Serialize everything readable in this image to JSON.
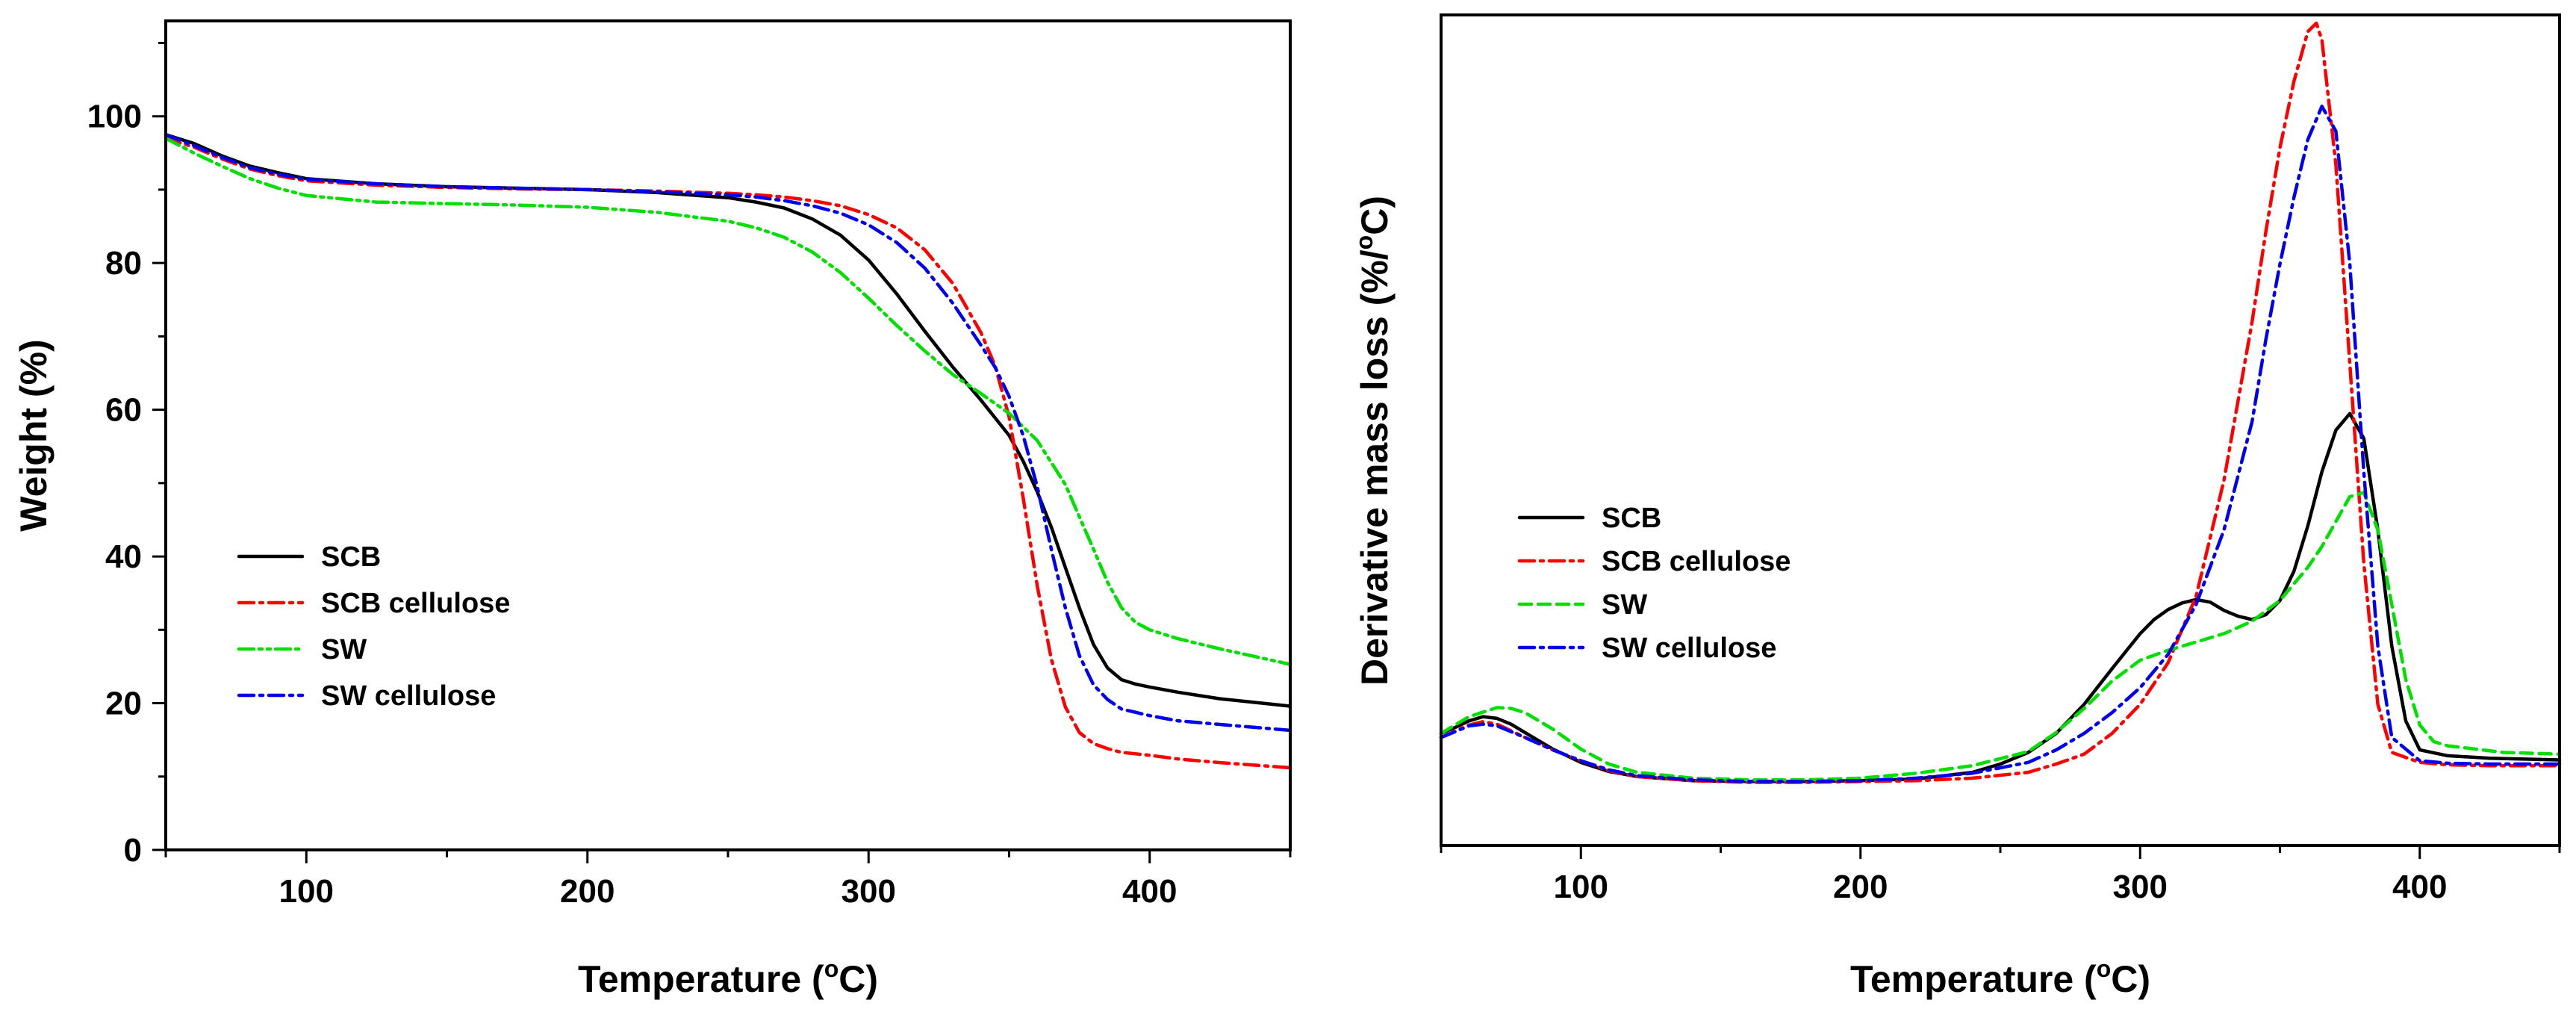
{
  "chart_data": [
    {
      "type": "line",
      "xlabel": "Temperature (",
      "xlabel_sup": "o",
      "xlabel_unit": "C)",
      "ylabel": "Weight (%)",
      "xlim": [
        50,
        450
      ],
      "ylim": [
        0,
        113
      ],
      "xticks": [
        "100",
        "200",
        "300",
        "400"
      ],
      "yticks": [
        "0",
        "20",
        "40",
        "60",
        "80",
        "100"
      ],
      "legend": [
        "SCB",
        "SCB cellulose",
        "SW",
        "SW cellulose"
      ],
      "series": [
        {
          "name": "SCB",
          "color": "#000000",
          "dash": "solid",
          "x": [
            50,
            60,
            70,
            80,
            90,
            100,
            125,
            150,
            175,
            200,
            225,
            250,
            260,
            270,
            280,
            290,
            300,
            310,
            320,
            330,
            340,
            350,
            355,
            360,
            365,
            370,
            375,
            380,
            385,
            390,
            395,
            400,
            410,
            425,
            450
          ],
          "y": [
            97.5,
            96.3,
            94.6,
            93.2,
            92.3,
            91.5,
            90.8,
            90.4,
            90.2,
            90.0,
            89.6,
            88.9,
            88.3,
            87.5,
            86.0,
            83.8,
            80.4,
            75.8,
            70.7,
            65.8,
            61.3,
            56.5,
            53.0,
            48.8,
            44.0,
            38.5,
            33.0,
            28.0,
            24.8,
            23.2,
            22.6,
            22.2,
            21.5,
            20.6,
            19.6
          ]
        },
        {
          "name": "SCB cellulose",
          "color": "#ff0000",
          "dash": "dashdot",
          "x": [
            50,
            60,
            70,
            80,
            90,
            100,
            125,
            150,
            175,
            200,
            225,
            250,
            260,
            270,
            280,
            290,
            300,
            310,
            320,
            330,
            340,
            345,
            350,
            355,
            360,
            365,
            370,
            375,
            380,
            385,
            390,
            400,
            410,
            425,
            450
          ],
          "y": [
            97.0,
            95.8,
            94.2,
            92.8,
            91.9,
            91.2,
            90.6,
            90.3,
            90.1,
            90.0,
            89.8,
            89.5,
            89.3,
            89.0,
            88.5,
            87.8,
            86.6,
            84.8,
            81.8,
            77.2,
            70.5,
            66.0,
            59.0,
            48.0,
            36.0,
            26.0,
            19.5,
            16.0,
            14.5,
            13.8,
            13.3,
            12.9,
            12.4,
            11.9,
            11.2
          ]
        },
        {
          "name": "SW",
          "color": "#00e000",
          "dash": "dashdotdot",
          "x": [
            50,
            60,
            70,
            80,
            90,
            100,
            125,
            150,
            175,
            200,
            225,
            250,
            260,
            270,
            280,
            290,
            300,
            310,
            320,
            330,
            340,
            350,
            360,
            370,
            380,
            385,
            390,
            395,
            400,
            410,
            425,
            450
          ],
          "y": [
            97.0,
            95.0,
            93.2,
            91.5,
            90.2,
            89.2,
            88.3,
            88.1,
            87.9,
            87.6,
            86.9,
            85.7,
            84.8,
            83.5,
            81.5,
            78.7,
            75.2,
            71.5,
            68.0,
            64.8,
            62.2,
            59.5,
            55.8,
            49.8,
            41.0,
            36.5,
            33.0,
            31.0,
            30.0,
            28.8,
            27.4,
            25.3
          ]
        },
        {
          "name": "SW cellulose",
          "color": "#0000ee",
          "dash": "dashdot",
          "x": [
            50,
            60,
            70,
            80,
            90,
            100,
            125,
            150,
            175,
            200,
            225,
            250,
            260,
            270,
            280,
            290,
            300,
            310,
            320,
            330,
            340,
            345,
            350,
            355,
            360,
            365,
            370,
            375,
            380,
            385,
            390,
            400,
            410,
            425,
            450
          ],
          "y": [
            97.5,
            96.0,
            94.4,
            93.0,
            92.1,
            91.4,
            90.8,
            90.4,
            90.2,
            90.0,
            89.7,
            89.3,
            89.0,
            88.5,
            87.8,
            86.8,
            85.2,
            82.8,
            79.3,
            74.5,
            68.8,
            65.8,
            61.8,
            56.5,
            49.5,
            41.0,
            33.0,
            26.5,
            22.5,
            20.5,
            19.2,
            18.3,
            17.6,
            17.1,
            16.3
          ]
        }
      ]
    },
    {
      "type": "line",
      "xlabel": "Temperature (",
      "xlabel_sup": "o",
      "xlabel_unit": "C)",
      "ylabel": "Derivative mass loss (%/",
      "ylabel_sup": "o",
      "ylabel_unit": "C)",
      "xlim": [
        50,
        450
      ],
      "ylim": [
        0,
        100
      ],
      "xticks": [
        "100",
        "200",
        "300",
        "400"
      ],
      "yticks": [],
      "legend": [
        "SCB",
        "SCB cellulose",
        "SW",
        "SW cellulose"
      ],
      "series": [
        {
          "name": "SCB",
          "color": "#000000",
          "dash": "solid",
          "x": [
            50,
            55,
            60,
            65,
            70,
            75,
            80,
            90,
            100,
            110,
            120,
            140,
            160,
            180,
            200,
            220,
            240,
            250,
            260,
            270,
            280,
            290,
            300,
            305,
            310,
            315,
            320,
            325,
            330,
            335,
            340,
            345,
            350,
            355,
            360,
            365,
            370,
            375,
            380,
            385,
            390,
            395,
            400,
            410,
            425,
            450
          ],
          "y": [
            13.5,
            14.2,
            15.0,
            15.5,
            15.3,
            14.6,
            13.6,
            11.6,
            10.0,
            8.9,
            8.3,
            7.8,
            7.7,
            7.7,
            7.8,
            8.0,
            8.8,
            9.8,
            11.2,
            13.5,
            17.0,
            21.3,
            25.5,
            27.2,
            28.4,
            29.2,
            29.6,
            29.3,
            28.3,
            27.6,
            27.2,
            27.8,
            29.5,
            33.0,
            38.5,
            45.0,
            50.0,
            52.0,
            49.0,
            38.0,
            24.0,
            15.0,
            11.5,
            10.8,
            10.5,
            10.3
          ]
        },
        {
          "name": "SCB cellulose",
          "color": "#ff0000",
          "dash": "dashdot",
          "x": [
            50,
            60,
            65,
            70,
            80,
            90,
            100,
            110,
            120,
            140,
            160,
            180,
            200,
            220,
            240,
            260,
            270,
            280,
            290,
            300,
            310,
            320,
            330,
            340,
            345,
            350,
            355,
            360,
            363,
            365,
            370,
            375,
            380,
            385,
            390,
            400,
            410,
            425,
            450
          ],
          "y": [
            13.0,
            14.5,
            14.9,
            14.6,
            13.0,
            11.5,
            10.2,
            9.0,
            8.3,
            7.8,
            7.6,
            7.6,
            7.7,
            7.8,
            8.1,
            8.8,
            9.8,
            11.0,
            13.5,
            17.0,
            22.0,
            30.0,
            44.0,
            63.0,
            74.0,
            84.0,
            92.0,
            98.0,
            99.0,
            97.0,
            82.0,
            58.0,
            34.0,
            17.0,
            11.2,
            10.0,
            9.7,
            9.6,
            9.6
          ]
        },
        {
          "name": "SW",
          "color": "#00e000",
          "dash": "dashed",
          "x": [
            50,
            60,
            70,
            75,
            80,
            90,
            100,
            110,
            120,
            140,
            160,
            180,
            200,
            220,
            240,
            260,
            270,
            280,
            290,
            300,
            310,
            320,
            330,
            340,
            350,
            360,
            365,
            370,
            375,
            380,
            385,
            390,
            395,
            400,
            405,
            410,
            420,
            430,
            450
          ],
          "y": [
            13.5,
            15.5,
            16.6,
            16.5,
            16.0,
            14.0,
            11.6,
            9.8,
            8.8,
            8.1,
            7.9,
            7.9,
            8.1,
            8.7,
            9.6,
            11.3,
            13.6,
            16.5,
            19.8,
            22.3,
            23.5,
            24.5,
            25.5,
            27.0,
            29.5,
            33.5,
            36.0,
            39.0,
            42.0,
            42.5,
            38.0,
            29.0,
            20.0,
            14.5,
            12.5,
            12.0,
            11.6,
            11.2,
            11.0
          ]
        },
        {
          "name": "SW cellulose",
          "color": "#0000ee",
          "dash": "dashdot",
          "x": [
            50,
            60,
            65,
            70,
            80,
            90,
            100,
            110,
            120,
            140,
            160,
            180,
            200,
            220,
            240,
            260,
            270,
            280,
            290,
            300,
            310,
            320,
            330,
            340,
            345,
            350,
            355,
            360,
            365,
            370,
            375,
            380,
            385,
            390,
            400,
            410,
            425,
            450
          ],
          "y": [
            13.0,
            14.4,
            14.6,
            14.4,
            13.0,
            11.5,
            10.2,
            9.1,
            8.4,
            7.9,
            7.7,
            7.7,
            7.8,
            8.1,
            8.7,
            10.0,
            11.5,
            13.5,
            16.0,
            19.0,
            23.0,
            29.0,
            38.0,
            51.0,
            61.0,
            70.0,
            78.0,
            85.0,
            89.0,
            86.0,
            70.0,
            45.0,
            24.0,
            13.0,
            10.2,
            9.9,
            9.8,
            9.8
          ]
        }
      ]
    }
  ]
}
